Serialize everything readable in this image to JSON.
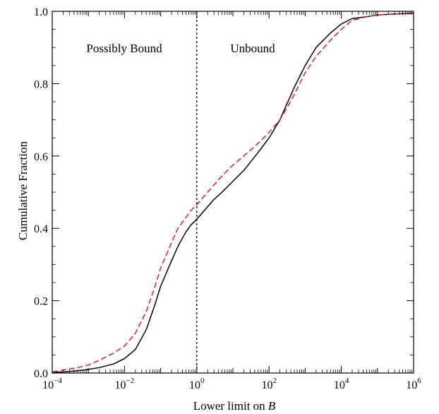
{
  "chart_data": {
    "type": "line",
    "xscale": "log",
    "xlim": [
      0.0001,
      1000000
    ],
    "ylim": [
      0,
      1
    ],
    "xlabel_prefix": "Lower limit on ",
    "xlabel_var": "B",
    "ylabel": "Cumulative Fraction",
    "x_tick_base": "10",
    "x_tick_exponents": [
      "−4",
      "−2",
      "0",
      "2",
      "4",
      "6"
    ],
    "y_tick_labels": [
      "0.0",
      "0.2",
      "0.4",
      "0.6",
      "0.8",
      "1.0"
    ],
    "grid": false,
    "reference_line": {
      "x": 1,
      "style": "dotted",
      "color": "#000000"
    },
    "annotations": {
      "left_region": "Possibly Bound",
      "right_region": "Unbound"
    },
    "series": [
      {
        "style": "solid",
        "color": "#000000",
        "x": [
          0.0001,
          0.0002,
          0.0005,
          0.001,
          0.002,
          0.005,
          0.01,
          0.02,
          0.04,
          0.07,
          0.1,
          0.2,
          0.3,
          0.5,
          0.7,
          1,
          2,
          3,
          5,
          10,
          20,
          50,
          100,
          200,
          300,
          500,
          1000,
          2000,
          5000,
          10000,
          20000,
          50000,
          100000,
          1000000
        ],
        "y": [
          0.002,
          0.003,
          0.006,
          0.01,
          0.015,
          0.025,
          0.04,
          0.065,
          0.12,
          0.19,
          0.24,
          0.31,
          0.35,
          0.39,
          0.41,
          0.425,
          0.46,
          0.48,
          0.5,
          0.53,
          0.56,
          0.61,
          0.65,
          0.7,
          0.74,
          0.79,
          0.85,
          0.9,
          0.94,
          0.965,
          0.98,
          0.985,
          0.99,
          0.995
        ]
      },
      {
        "style": "dashed",
        "color": "#d62020",
        "x": [
          0.0001,
          0.0002,
          0.0005,
          0.001,
          0.002,
          0.005,
          0.01,
          0.02,
          0.04,
          0.07,
          0.1,
          0.2,
          0.3,
          0.5,
          0.7,
          1,
          2,
          3,
          5,
          10,
          20,
          50,
          100,
          200,
          300,
          500,
          1000,
          2000,
          5000,
          10000,
          20000,
          50000,
          100000,
          1000000
        ],
        "y": [
          0.003,
          0.008,
          0.015,
          0.022,
          0.035,
          0.055,
          0.075,
          0.11,
          0.17,
          0.24,
          0.29,
          0.36,
          0.4,
          0.43,
          0.45,
          0.465,
          0.5,
          0.52,
          0.545,
          0.575,
          0.6,
          0.635,
          0.665,
          0.7,
          0.73,
          0.77,
          0.83,
          0.875,
          0.92,
          0.95,
          0.975,
          0.985,
          0.99,
          0.995
        ]
      }
    ]
  }
}
